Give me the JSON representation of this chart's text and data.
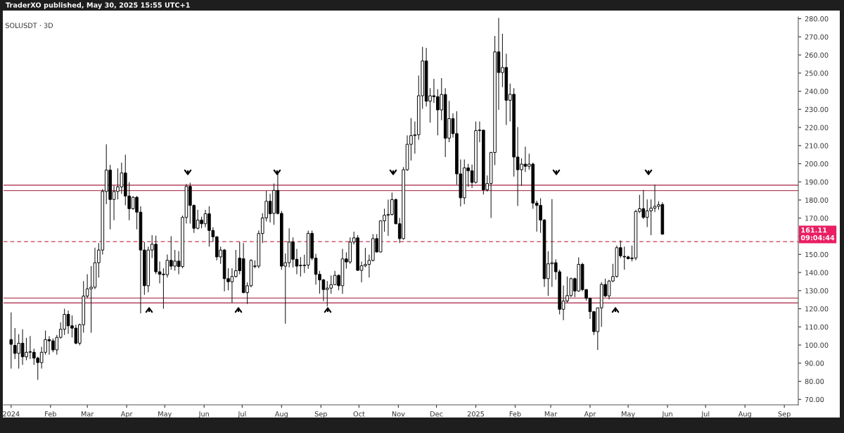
{
  "chart_data": {
    "type": "candlestick",
    "title": "TraderXO published, May 30, 2025 15:55 UTC+1",
    "subtitle": "SOLUSDT · 3D",
    "x": [
      "2024-01-01",
      "2024-01-04",
      "2024-01-07",
      "2024-01-10",
      "2024-01-13",
      "2024-01-16",
      "2024-01-19",
      "2024-01-22",
      "2024-01-25",
      "2024-01-28",
      "2024-01-31",
      "2024-02-03",
      "2024-02-06",
      "2024-02-09",
      "2024-02-12",
      "2024-02-15",
      "2024-02-18",
      "2024-02-21",
      "2024-02-24",
      "2024-02-27",
      "2024-03-01",
      "2024-03-04",
      "2024-03-07",
      "2024-03-10",
      "2024-03-13",
      "2024-03-16",
      "2024-03-19",
      "2024-03-22",
      "2024-03-25",
      "2024-03-28",
      "2024-03-31",
      "2024-04-03",
      "2024-04-06",
      "2024-04-09",
      "2024-04-12",
      "2024-04-15",
      "2024-04-18",
      "2024-04-21",
      "2024-04-24",
      "2024-04-27",
      "2024-04-30",
      "2024-05-03",
      "2024-05-06",
      "2024-05-09",
      "2024-05-12",
      "2024-05-15",
      "2024-05-18",
      "2024-05-21",
      "2024-05-24",
      "2024-05-27",
      "2024-05-30",
      "2024-06-02",
      "2024-06-05",
      "2024-06-08",
      "2024-06-11",
      "2024-06-14",
      "2024-06-17",
      "2024-06-20",
      "2024-06-23",
      "2024-06-26",
      "2024-06-29",
      "2024-07-02",
      "2024-07-05",
      "2024-07-08",
      "2024-07-11",
      "2024-07-14",
      "2024-07-17",
      "2024-07-20",
      "2024-07-23",
      "2024-07-26",
      "2024-07-29",
      "2024-08-01",
      "2024-08-04",
      "2024-08-07",
      "2024-08-10",
      "2024-08-13",
      "2024-08-16",
      "2024-08-19",
      "2024-08-22",
      "2024-08-25",
      "2024-08-28",
      "2024-08-31",
      "2024-09-03",
      "2024-09-06",
      "2024-09-09",
      "2024-09-12",
      "2024-09-15",
      "2024-09-18",
      "2024-09-21",
      "2024-09-24",
      "2024-09-27",
      "2024-09-30",
      "2024-10-03",
      "2024-10-06",
      "2024-10-09",
      "2024-10-12",
      "2024-10-15",
      "2024-10-18",
      "2024-10-21",
      "2024-10-24",
      "2024-10-27",
      "2024-10-30",
      "2024-11-02",
      "2024-11-05",
      "2024-11-08",
      "2024-11-11",
      "2024-11-14",
      "2024-11-17",
      "2024-11-20",
      "2024-11-23",
      "2024-11-26",
      "2024-11-29",
      "2024-12-02",
      "2024-12-05",
      "2024-12-08",
      "2024-12-11",
      "2024-12-14",
      "2024-12-17",
      "2024-12-20",
      "2024-12-23",
      "2024-12-26",
      "2024-12-29",
      "2025-01-01",
      "2025-01-04",
      "2025-01-07",
      "2025-01-10",
      "2025-01-13",
      "2025-01-16",
      "2025-01-19",
      "2025-01-22",
      "2025-01-25",
      "2025-01-28",
      "2025-01-31",
      "2025-02-03",
      "2025-02-06",
      "2025-02-09",
      "2025-02-12",
      "2025-02-15",
      "2025-02-18",
      "2025-02-21",
      "2025-02-24",
      "2025-02-27",
      "2025-03-02",
      "2025-03-05",
      "2025-03-08",
      "2025-03-11",
      "2025-03-14",
      "2025-03-17",
      "2025-03-20",
      "2025-03-23",
      "2025-03-26",
      "2025-03-29",
      "2025-04-01",
      "2025-04-04",
      "2025-04-07",
      "2025-04-10",
      "2025-04-13",
      "2025-04-16",
      "2025-04-19",
      "2025-04-22",
      "2025-04-25",
      "2025-04-28",
      "2025-05-01",
      "2025-05-04",
      "2025-05-07",
      "2025-05-10",
      "2025-05-13",
      "2025-05-16",
      "2025-05-19",
      "2025-05-22",
      "2025-05-25",
      "2025-05-28"
    ],
    "ohlc": [
      [
        103,
        118,
        87,
        100.4
      ],
      [
        99.8,
        109.3,
        92.2,
        95.4
      ],
      [
        95.4,
        106,
        87,
        101
      ],
      [
        101,
        108.7,
        89,
        93.5
      ],
      [
        93.5,
        104,
        91.6,
        96
      ],
      [
        96,
        105,
        92.2,
        96.2
      ],
      [
        96,
        98,
        89,
        92.8
      ],
      [
        92.8,
        93.5,
        80.8,
        90.3
      ],
      [
        90.3,
        99,
        87,
        96
      ],
      [
        96,
        108,
        94.7,
        103
      ],
      [
        103,
        104.9,
        94.7,
        102.3
      ],
      [
        102.3,
        103.6,
        96,
        97.3
      ],
      [
        97.3,
        105.5,
        94.7,
        104.2
      ],
      [
        104.2,
        112.5,
        103.5,
        108.7
      ],
      [
        108.7,
        120,
        105.5,
        116.9
      ],
      [
        116.9,
        119,
        106.1,
        110.6
      ],
      [
        110.6,
        116.3,
        104.2,
        109.3
      ],
      [
        109.3,
        111.2,
        100.4,
        101
      ],
      [
        101,
        111.8,
        99.8,
        111.2
      ],
      [
        111.2,
        135.3,
        106.8,
        127
      ],
      [
        127,
        139,
        125.8,
        131
      ],
      [
        131,
        143.5,
        106.8,
        131.9
      ],
      [
        131.9,
        153.7,
        130.8,
        145.4
      ],
      [
        145.4,
        156.2,
        137.2,
        152.4
      ],
      [
        152.4,
        186,
        149.9,
        184.7
      ],
      [
        184.7,
        210.7,
        177.7,
        196.5
      ],
      [
        196.5,
        199.3,
        163.8,
        180.3
      ],
      [
        180.3,
        187.9,
        168.9,
        184.7
      ],
      [
        184.7,
        197.4,
        180.3,
        187.2
      ],
      [
        187.2,
        200.6,
        183.4,
        194.9
      ],
      [
        194.9,
        205,
        177.1,
        182.2
      ],
      [
        182.2,
        189.8,
        168.9,
        175.2
      ],
      [
        175.2,
        182.2,
        174.6,
        181.5
      ],
      [
        181.5,
        182.2,
        163.8,
        173.3
      ],
      [
        173.3,
        176.5,
        117.5,
        152.4
      ],
      [
        152.4,
        156.8,
        127.7,
        132.7
      ],
      [
        132.7,
        154.3,
        129,
        152.4
      ],
      [
        152.4,
        160.6,
        148,
        155.6
      ],
      [
        155.6,
        160.3,
        139.1,
        140.4
      ],
      [
        140.4,
        146,
        134,
        139
      ],
      [
        139,
        142.3,
        120,
        138.8
      ],
      [
        138.8,
        149.9,
        137.2,
        146.7
      ],
      [
        146.7,
        160,
        141.6,
        143.5
      ],
      [
        143.5,
        152.4,
        141,
        146.3
      ],
      [
        146.3,
        151.8,
        139,
        143.3
      ],
      [
        143.3,
        171.4,
        142.3,
        170.4
      ],
      [
        170.4,
        188.9,
        167,
        187.5
      ],
      [
        187.5,
        189.5,
        167,
        177
      ],
      [
        177,
        177.5,
        161.9,
        164.4
      ],
      [
        164.4,
        174.6,
        163.8,
        168.9
      ],
      [
        168.9,
        170.8,
        164.4,
        166.9
      ],
      [
        166.9,
        174.6,
        165,
        172.4
      ],
      [
        172.4,
        176.5,
        154.3,
        163.2
      ],
      [
        163.2,
        165,
        156.8,
        159.7
      ],
      [
        159.7,
        160,
        146.7,
        148.6
      ],
      [
        148.6,
        154.3,
        144.8,
        152.4
      ],
      [
        152.4,
        153,
        129.6,
        136.6
      ],
      [
        136.6,
        142.3,
        130.2,
        134.9
      ],
      [
        134.9,
        142.3,
        123.2,
        137.8
      ],
      [
        137.8,
        152.4,
        137.2,
        141
      ],
      [
        147.9,
        156.8,
        139,
        141
      ],
      [
        147.6,
        156.2,
        128.6,
        128.9
      ],
      [
        128.9,
        134.6,
        122.6,
        132.7
      ],
      [
        132.7,
        147.3,
        131.9,
        146.7
      ],
      [
        143.3,
        146.7,
        142.3,
        143.5
      ],
      [
        143.5,
        163.2,
        142.3,
        161.5
      ],
      [
        161.5,
        172.7,
        156.2,
        170.1
      ],
      [
        170.1,
        185.1,
        168.2,
        179.3
      ],
      [
        179.3,
        183.4,
        167.6,
        172.4
      ],
      [
        172.6,
        189.1,
        166.3,
        185.3
      ],
      [
        185.3,
        194.8,
        172,
        172.6
      ],
      [
        172.6,
        174,
        141.6,
        143.5
      ],
      [
        143.5,
        150.5,
        111.8,
        145.4
      ],
      [
        145.4,
        164.4,
        142.8,
        156.8
      ],
      [
        156.8,
        159.3,
        142.8,
        147.3
      ],
      [
        147.3,
        153,
        139,
        143.5
      ],
      [
        143.7,
        148.6,
        137.8,
        143.8
      ],
      [
        143.8,
        149.8,
        139.7,
        144.1
      ],
      [
        144.1,
        163.1,
        142.1,
        161.6
      ],
      [
        161.6,
        163.1,
        146.7,
        147.9
      ],
      [
        147.9,
        150.3,
        133.3,
        139
      ],
      [
        139,
        140.9,
        128.3,
        135.9
      ],
      [
        135.9,
        136.5,
        124.2,
        130.6
      ],
      [
        130.6,
        135.3,
        121.3,
        131.4
      ],
      [
        131.4,
        138.4,
        128.3,
        133.3
      ],
      [
        133.3,
        140.9,
        133,
        138.4
      ],
      [
        138.4,
        139,
        130.2,
        132.7
      ],
      [
        132.7,
        153,
        128.3,
        147.5
      ],
      [
        147.5,
        151.1,
        142.2,
        145.8
      ],
      [
        145.8,
        159.3,
        144.8,
        156.8
      ],
      [
        156.8,
        162.5,
        155.5,
        159.1
      ],
      [
        159.1,
        160.6,
        140.9,
        141.2
      ],
      [
        141.2,
        146,
        134.6,
        143.7
      ],
      [
        143.7,
        153.6,
        142.9,
        144.5
      ],
      [
        144.5,
        149.8,
        137.2,
        146.7
      ],
      [
        146.7,
        161.2,
        146,
        158.7
      ],
      [
        158.7,
        161.2,
        151.1,
        151.3
      ],
      [
        151.3,
        168.8,
        151.1,
        168.5
      ],
      [
        168.5,
        175.2,
        162.5,
        171.6
      ],
      [
        171.6,
        180.2,
        160.2,
        172
      ],
      [
        172,
        184.1,
        171.4,
        180.2
      ],
      [
        180.2,
        180.9,
        166.5,
        166.9
      ],
      [
        166.9,
        170.1,
        156.2,
        158.7
      ],
      [
        158.7,
        198.2,
        158.1,
        196.7
      ],
      [
        196.7,
        215.7,
        196,
        210.7
      ],
      [
        210.7,
        225.2,
        201.8,
        215.5
      ],
      [
        215.5,
        223.3,
        205.6,
        216
      ],
      [
        216,
        248.7,
        213.2,
        237.5
      ],
      [
        237.5,
        264.5,
        230.3,
        256.7
      ],
      [
        256.7,
        263.9,
        231.6,
        234.5
      ],
      [
        234.5,
        241.7,
        222.7,
        237.5
      ],
      [
        237.5,
        246.8,
        233.5,
        237
      ],
      [
        237,
        241.1,
        215.7,
        229.7
      ],
      [
        229.7,
        247.2,
        224,
        238.2
      ],
      [
        238.2,
        241.7,
        203.7,
        214.1
      ],
      [
        214.1,
        234.7,
        211.9,
        224.9
      ],
      [
        224.9,
        227.8,
        214.5,
        216.6
      ],
      [
        216.6,
        229,
        188.5,
        194.4
      ],
      [
        194.4,
        202.4,
        176.4,
        181.2
      ],
      [
        181.2,
        202.4,
        177.7,
        197.7
      ],
      [
        197.7,
        199.9,
        187.2,
        196.1
      ],
      [
        196.1,
        199.5,
        186.6,
        189.7
      ],
      [
        189.7,
        223.3,
        189.1,
        218.3
      ],
      [
        218.3,
        223.3,
        211.9,
        218.5
      ],
      [
        218.5,
        218.9,
        183,
        185.6
      ],
      [
        185.6,
        193.5,
        184.7,
        189.1
      ],
      [
        189.1,
        206.6,
        170.1,
        206.2
      ],
      [
        206.2,
        270.5,
        199.2,
        261.7
      ],
      [
        261.7,
        280.4,
        229.7,
        250.3
      ],
      [
        250.3,
        271.7,
        242.3,
        253.1
      ],
      [
        253.1,
        260.7,
        221.4,
        235
      ],
      [
        235,
        244.2,
        223.3,
        238.3
      ],
      [
        238.3,
        241.7,
        192.9,
        203.7
      ],
      [
        203.7,
        220.2,
        176.7,
        196.7
      ],
      [
        196.7,
        203,
        187.8,
        199.8
      ],
      [
        199.8,
        209.4,
        195.5,
        198.6
      ],
      [
        198.6,
        205.6,
        196.7,
        199.8
      ],
      [
        199.8,
        200.6,
        175.2,
        178.3
      ],
      [
        178.3,
        179.6,
        162.5,
        177
      ],
      [
        177,
        181,
        161.9,
        168.9
      ],
      [
        168.9,
        169.5,
        132.1,
        136.6
      ],
      [
        136.6,
        151.8,
        127.1,
        144.8
      ],
      [
        144.8,
        180.5,
        132.1,
        145.4
      ],
      [
        145.4,
        147.3,
        136,
        140.4
      ],
      [
        140.4,
        141.6,
        116.9,
        119.7
      ],
      [
        119.7,
        132.8,
        113.7,
        124.3
      ],
      [
        124.3,
        137.8,
        123.3,
        127.3
      ],
      [
        127.3,
        137.2,
        126.4,
        136.6
      ],
      [
        136.6,
        137.2,
        126.4,
        129.8
      ],
      [
        129.8,
        148.4,
        129.3,
        144.5
      ],
      [
        144.5,
        145.4,
        129.6,
        130.6
      ],
      [
        130.6,
        130.8,
        124.5,
        125.8
      ],
      [
        125.8,
        126.1,
        114.4,
        118.4
      ],
      [
        118.4,
        118.8,
        105.5,
        107.4
      ],
      [
        107.4,
        120.7,
        97.3,
        120.5
      ],
      [
        120.5,
        134.7,
        110,
        133.4
      ],
      [
        133.4,
        136.6,
        126.4,
        127.1
      ],
      [
        127.1,
        135.9,
        125.2,
        135.3
      ],
      [
        135.3,
        144.8,
        134.7,
        137.8
      ],
      [
        137.8,
        154.9,
        137.2,
        153.7
      ],
      [
        153.7,
        157.7,
        148,
        149.2
      ],
      [
        148.9,
        154.3,
        141.6,
        148.6
      ],
      [
        148.6,
        149.2,
        147.3,
        147.6
      ],
      [
        147.6,
        154.9,
        146.1,
        148
      ],
      [
        148,
        174.6,
        146.7,
        173.7
      ],
      [
        173.7,
        182.8,
        172.7,
        175.2
      ],
      [
        175.2,
        185.6,
        169.5,
        170.4
      ],
      [
        170.4,
        180.3,
        165.1,
        174
      ],
      [
        174,
        180.3,
        160.6,
        175.5
      ],
      [
        175.5,
        188.5,
        173.3,
        176.5
      ],
      [
        176.5,
        179.3,
        174.6,
        177.4
      ],
      [
        177.5,
        178.8,
        161,
        161.11
      ]
    ],
    "xlim": [
      "2023-12-26",
      "2025-09-12"
    ],
    "xticks": [
      {
        "value": "2024-01-01",
        "label": "2024"
      },
      {
        "value": "2024-02-01",
        "label": "Feb"
      },
      {
        "value": "2024-03-01",
        "label": "Mar"
      },
      {
        "value": "2024-04-01",
        "label": "Apr"
      },
      {
        "value": "2024-05-01",
        "label": "May"
      },
      {
        "value": "2024-06-01",
        "label": "Jun"
      },
      {
        "value": "2024-07-01",
        "label": "Jul"
      },
      {
        "value": "2024-08-01",
        "label": "Aug"
      },
      {
        "value": "2024-09-01",
        "label": "Sep"
      },
      {
        "value": "2024-10-01",
        "label": "Oct"
      },
      {
        "value": "2024-11-01",
        "label": "Nov"
      },
      {
        "value": "2024-12-01",
        "label": "Dec"
      },
      {
        "value": "2025-01-01",
        "label": "2025"
      },
      {
        "value": "2025-02-01",
        "label": "Feb"
      },
      {
        "value": "2025-03-01",
        "label": "Mar"
      },
      {
        "value": "2025-04-01",
        "label": "Apr"
      },
      {
        "value": "2025-05-01",
        "label": "May"
      },
      {
        "value": "2025-06-01",
        "label": "Jun"
      },
      {
        "value": "2025-07-01",
        "label": "Jul"
      },
      {
        "value": "2025-08-01",
        "label": "Aug"
      },
      {
        "value": "2025-09-01",
        "label": "Sep"
      }
    ],
    "ylim": [
      67,
      281
    ],
    "yticks": [
      {
        "value": 70,
        "label": "70.00"
      },
      {
        "value": 80,
        "label": "80.00"
      },
      {
        "value": 90,
        "label": "90.00"
      },
      {
        "value": 100,
        "label": "100.00"
      },
      {
        "value": 110,
        "label": "110.00"
      },
      {
        "value": 120,
        "label": "120.00"
      },
      {
        "value": 130,
        "label": "130.00"
      },
      {
        "value": 140,
        "label": "140.00"
      },
      {
        "value": 150,
        "label": "150.00"
      },
      {
        "value": 160,
        "label": null
      },
      {
        "value": 170,
        "label": "170.00"
      },
      {
        "value": 180,
        "label": "180.00"
      },
      {
        "value": 190,
        "label": "190.00"
      },
      {
        "value": 200,
        "label": "200.00"
      },
      {
        "value": 210,
        "label": "210.00"
      },
      {
        "value": 220,
        "label": "220.00"
      },
      {
        "value": 230,
        "label": "230.00"
      },
      {
        "value": 240,
        "label": "240.00"
      },
      {
        "value": 250,
        "label": "250.00"
      },
      {
        "value": 260,
        "label": "260.00"
      },
      {
        "value": 270,
        "label": "270.00"
      },
      {
        "value": 280,
        "label": "280.00"
      }
    ],
    "ref_lines": [
      {
        "axis": "y",
        "value": 188.2,
        "color": "#b5475f",
        "line_style": "solid"
      },
      {
        "axis": "y",
        "value": 185.2,
        "color": "#b5475f",
        "line_style": "solid"
      },
      {
        "axis": "y",
        "value": 157,
        "color": "#d05a72",
        "line_style": "dashed"
      },
      {
        "axis": "y",
        "value": 125.9,
        "color": "#b5475f",
        "line_style": "solid"
      },
      {
        "axis": "y",
        "value": 123.2,
        "color": "#b5475f",
        "line_style": "solid"
      }
    ],
    "annotations": [
      "161.11\n09:04:44"
    ]
  }
}
